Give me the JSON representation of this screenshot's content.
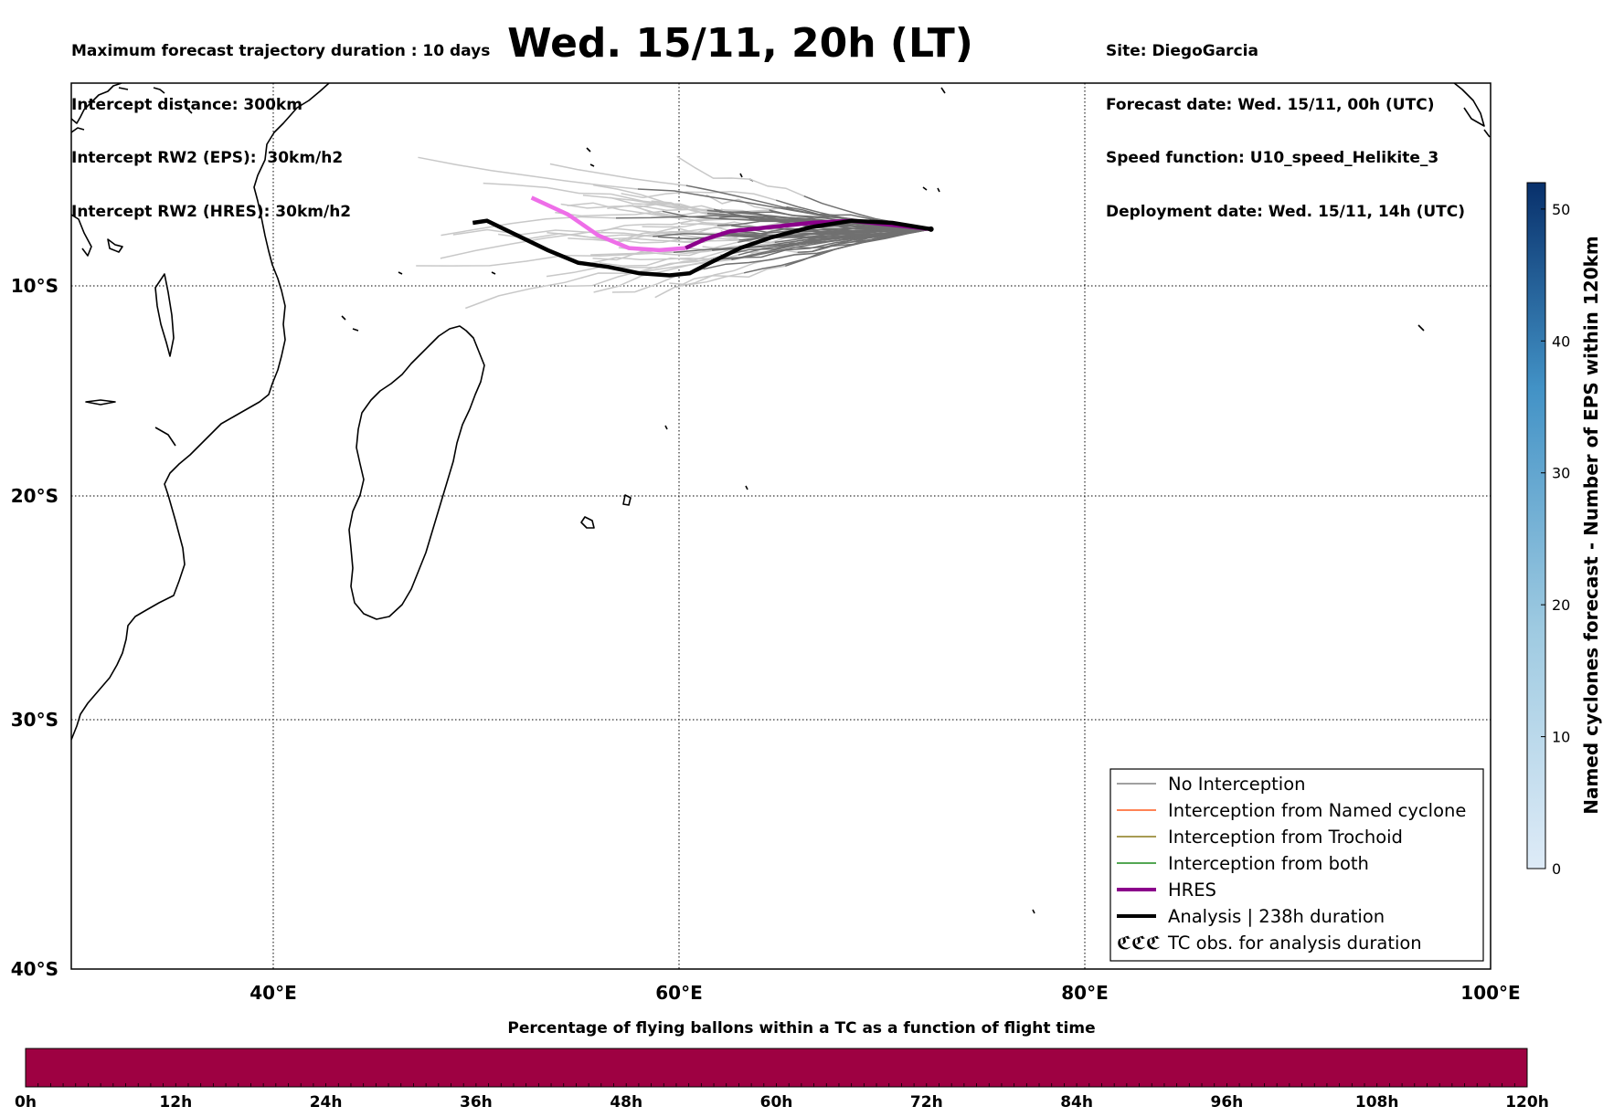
{
  "header_left": [
    "Maximum forecast trajectory duration : 10 days",
    "Intercept distance: 300km",
    "Intercept RW2 (EPS):  30km/h2",
    "Intercept RW2 (HRES): 30km/h2"
  ],
  "header_right": [
    "Site: DiegoGarcia",
    "Forecast date: Wed. 15/11, 00h (UTC)",
    "Speed function: U10_speed_Helikite_3",
    "Deployment date: Wed. 15/11, 14h (UTC)"
  ],
  "title": "Wed. 15/11, 20h (LT)",
  "map": {
    "lon_labels": [
      "40°E",
      "60°E",
      "80°E",
      "100°E"
    ],
    "lat_labels": [
      "10°S",
      "20°S",
      "30°S",
      "40°S"
    ],
    "extent": {
      "lon_min": 30,
      "lon_max": 100,
      "lat_top": -0.5,
      "lat_bottom": -40
    }
  },
  "legend": [
    {
      "label": "No Interception",
      "color": "#808080",
      "width": 1.5
    },
    {
      "label": "Interception from Named cyclone",
      "color": "#ff5a1f",
      "width": 1.5
    },
    {
      "label": "Interception from Trochoid",
      "color": "#8a7a1a",
      "width": 1.5
    },
    {
      "label": "Interception from both",
      "color": "#1a8a1a",
      "width": 1.5
    },
    {
      "label": "HRES",
      "color": "#8b008b",
      "width": 4
    },
    {
      "label": "Analysis | 238h duration",
      "color": "#000000",
      "width": 4
    },
    {
      "label": "TC obs. for analysis duration",
      "icon": "cyclone-symbols"
    }
  ],
  "legend_icon_text": "ℭℭℭ",
  "colorbar": {
    "label": "Named cyclones forecast - Number of EPS within 120km",
    "ticks": [
      "0",
      "10",
      "20",
      "30",
      "40",
      "50"
    ],
    "min": 0,
    "max": 52,
    "color_low": "#deebf7",
    "color_high": "#08306b"
  },
  "bottom_bar": {
    "title": "Percentage of flying ballons within a TC as a function of flight time",
    "ticks": [
      "0h",
      "12h",
      "24h",
      "36h",
      "48h",
      "60h",
      "72h",
      "84h",
      "96h",
      "108h",
      "120h"
    ],
    "fill_color": "#9e0142"
  },
  "tracks": {
    "site": {
      "lon": 72.4,
      "lat": -7.3
    },
    "hres": [
      [
        72.4,
        -7.3
      ],
      [
        70.5,
        -7.1
      ],
      [
        68.5,
        -6.9
      ],
      [
        66.5,
        -7.0
      ],
      [
        64.5,
        -7.2
      ],
      [
        62.5,
        -7.4
      ],
      [
        61.2,
        -7.8
      ],
      [
        60.3,
        -8.2
      ],
      [
        59,
        -8.3
      ],
      [
        57.5,
        -8.2
      ],
      [
        56,
        -7.6
      ],
      [
        54.5,
        -6.6
      ],
      [
        52.7,
        -5.8
      ]
    ],
    "analysis": [
      [
        72.4,
        -7.3
      ],
      [
        70.5,
        -7.0
      ],
      [
        68.5,
        -6.9
      ],
      [
        66.5,
        -7.2
      ],
      [
        64.5,
        -7.7
      ],
      [
        63,
        -8.2
      ],
      [
        61.5,
        -8.9
      ],
      [
        60.5,
        -9.4
      ],
      [
        59.5,
        -9.5
      ],
      [
        58,
        -9.4
      ],
      [
        56.5,
        -9.1
      ],
      [
        55,
        -8.9
      ],
      [
        53.5,
        -8.3
      ],
      [
        52,
        -7.6
      ],
      [
        50.5,
        -6.9
      ],
      [
        49.8,
        -7.0
      ]
    ]
  }
}
